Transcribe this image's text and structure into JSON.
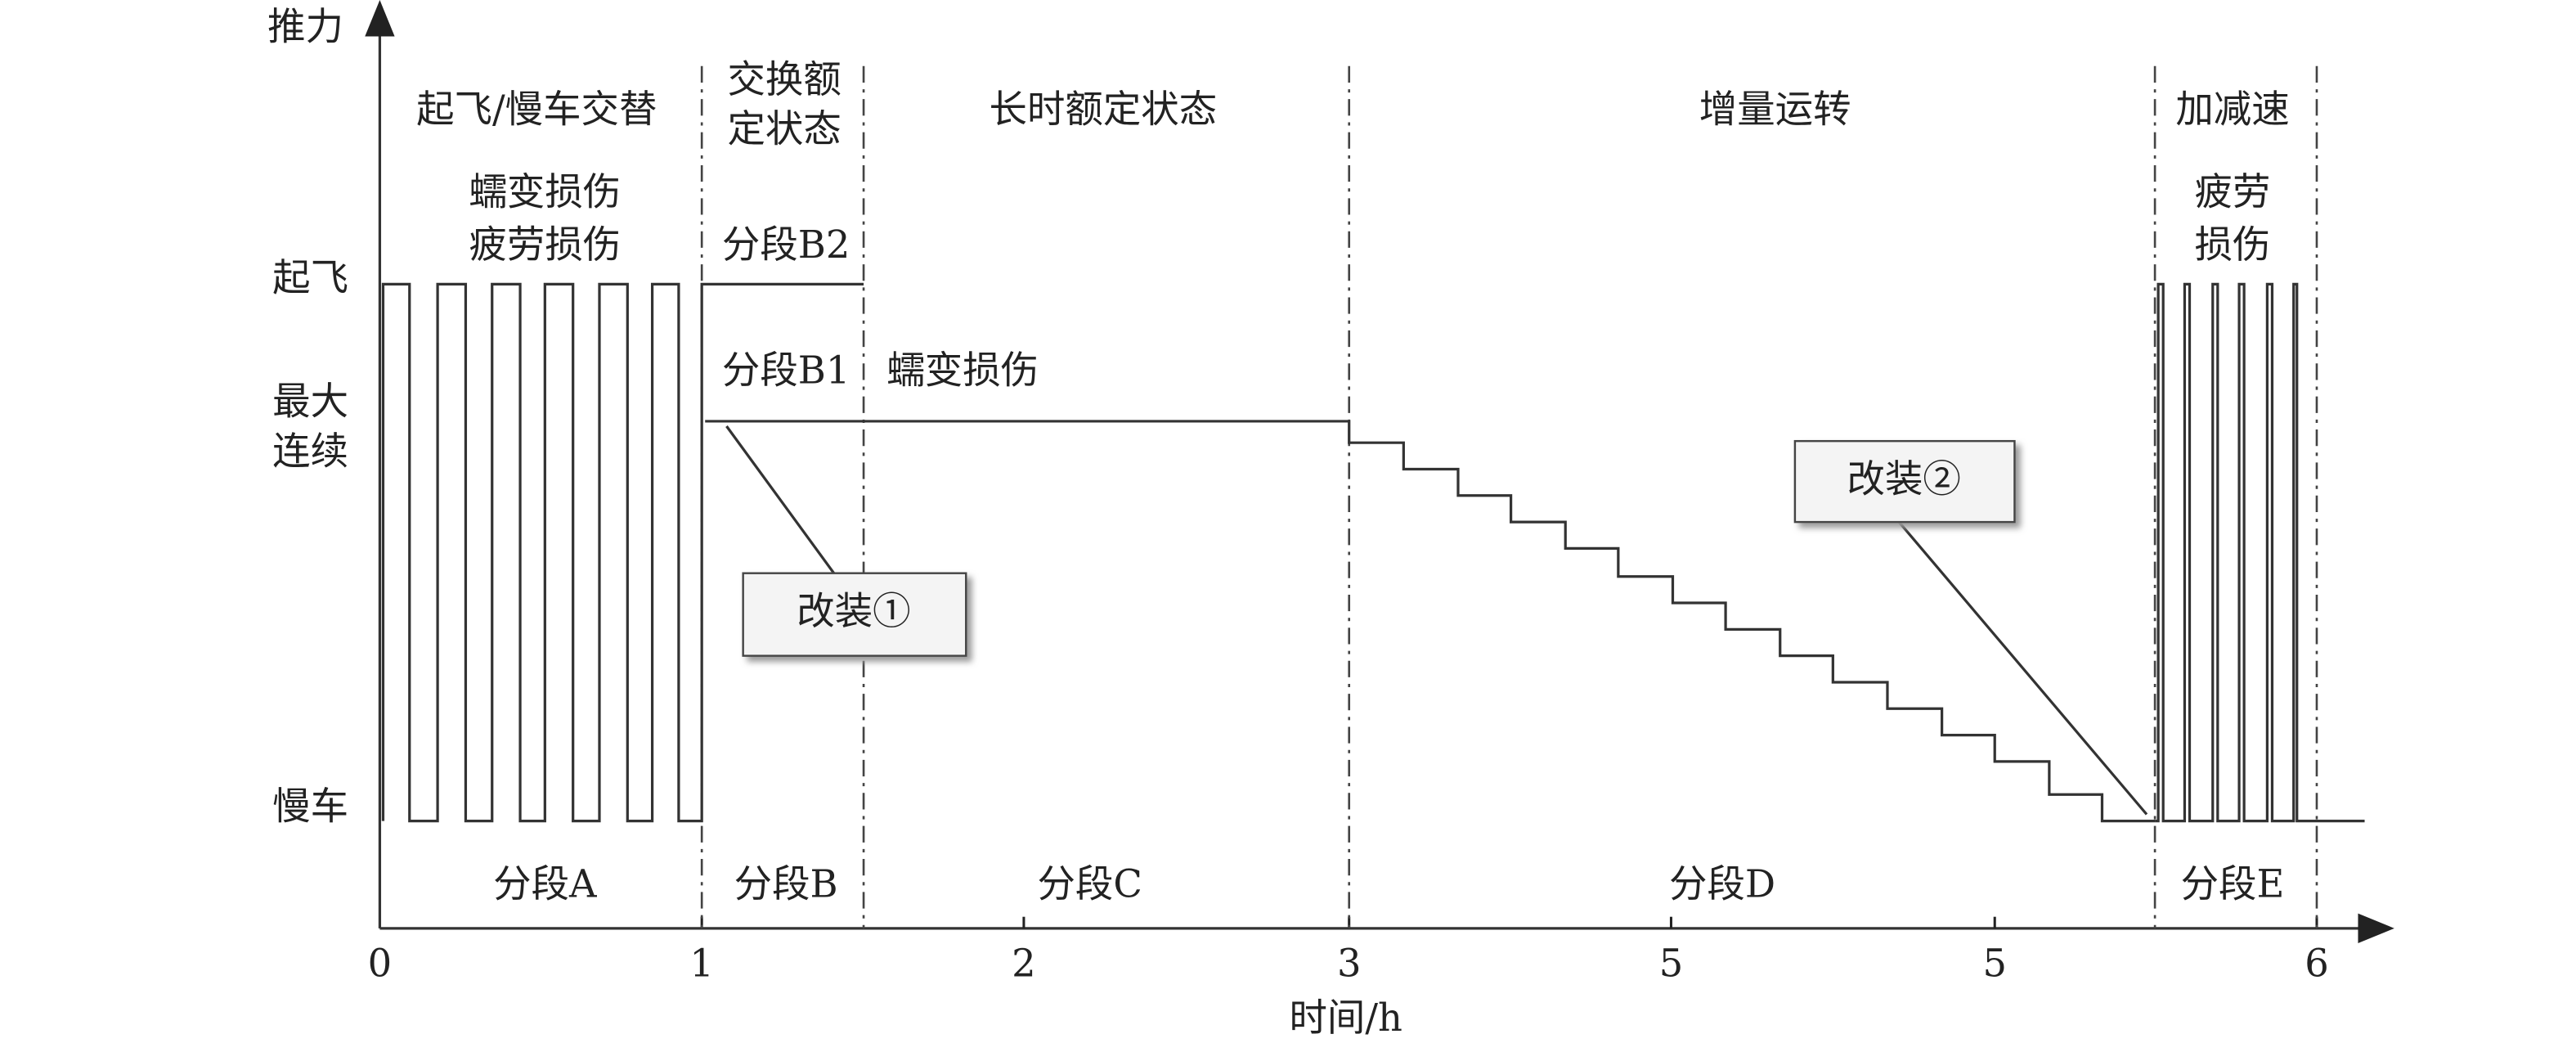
{
  "axes": {
    "y_label": "推力",
    "x_label": "时间/h",
    "y_levels": [
      "起飞",
      "最大",
      "连续",
      "慢车"
    ],
    "x_ticks": [
      "0",
      "1",
      "2",
      "3",
      "5",
      "5",
      "6"
    ]
  },
  "phases": [
    "起飞/慢车交替",
    "交换额",
    "定状态",
    "长时额定状态",
    "增量运转",
    "加减速"
  ],
  "damage": [
    "蠕变损伤",
    "疲劳损伤",
    "分段B2",
    "分段B1",
    "蠕变损伤",
    "疲劳",
    "损伤"
  ],
  "segments": [
    "分段A",
    "分段B",
    "分段C",
    "分段D",
    "分段E"
  ],
  "callouts": [
    "改装①",
    "改装②"
  ]
}
